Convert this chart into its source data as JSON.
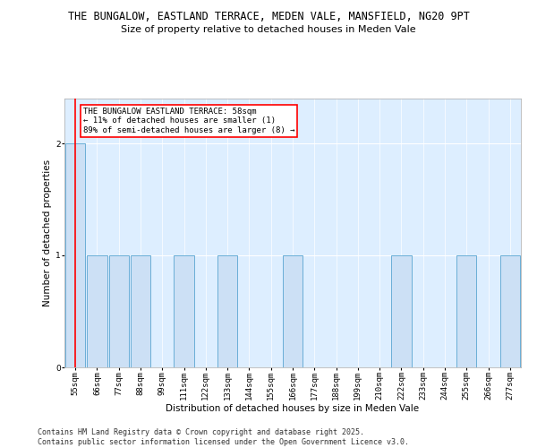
{
  "title_line1": "THE BUNGALOW, EASTLAND TERRACE, MEDEN VALE, MANSFIELD, NG20 9PT",
  "title_line2": "Size of property relative to detached houses in Meden Vale",
  "xlabel": "Distribution of detached houses by size in Meden Vale",
  "ylabel": "Number of detached properties",
  "bin_labels": [
    "55sqm",
    "66sqm",
    "77sqm",
    "88sqm",
    "99sqm",
    "111sqm",
    "122sqm",
    "133sqm",
    "144sqm",
    "155sqm",
    "166sqm",
    "177sqm",
    "188sqm",
    "199sqm",
    "210sqm",
    "222sqm",
    "233sqm",
    "244sqm",
    "255sqm",
    "266sqm",
    "277sqm"
  ],
  "bar_heights": [
    2,
    1,
    1,
    1,
    0,
    1,
    0,
    1,
    0,
    0,
    1,
    0,
    0,
    0,
    0,
    1,
    0,
    0,
    1,
    0,
    1
  ],
  "subject_bin_index": 0,
  "bar_color": "#cce0f5",
  "bar_edge_color": "#6aaed6",
  "annotation_box_color": "#ffffff",
  "annotation_box_edge_color": "#ff0000",
  "annotation_text_line1": "THE BUNGALOW EASTLAND TERRACE: 58sqm",
  "annotation_text_line2": "← 11% of detached houses are smaller (1)",
  "annotation_text_line3": "89% of semi-detached houses are larger (8) →",
  "annotation_fontsize": 6.5,
  "title_fontsize1": 8.5,
  "title_fontsize2": 8,
  "xlabel_fontsize": 7.5,
  "ylabel_fontsize": 7.5,
  "tick_fontsize": 6.5,
  "ylim": [
    0,
    2.4
  ],
  "yticks": [
    0,
    1,
    2
  ],
  "footer_line1": "Contains HM Land Registry data © Crown copyright and database right 2025.",
  "footer_line2": "Contains public sector information licensed under the Open Government Licence v3.0.",
  "footer_fontsize": 6,
  "background_color": "#ffffff",
  "plot_bg_color": "#ddeeff"
}
